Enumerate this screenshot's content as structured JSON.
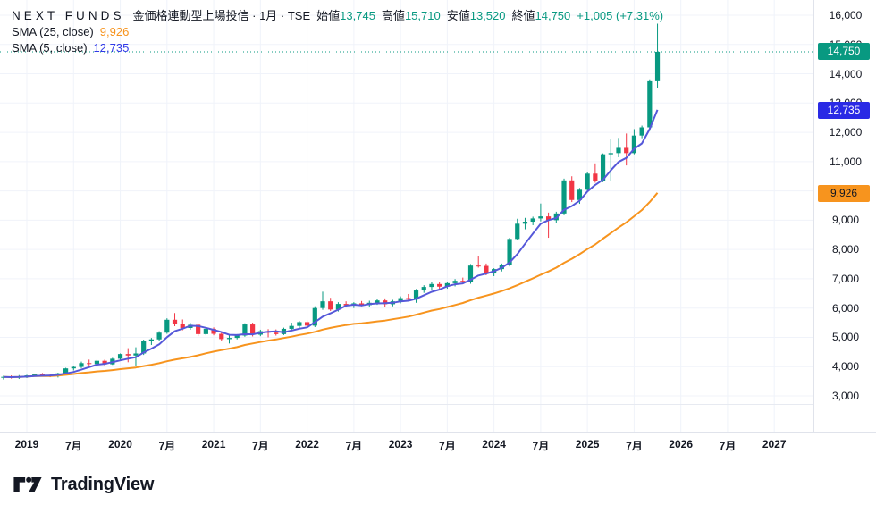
{
  "header": {
    "symbol": "NEXT FUNDS",
    "description": "金価格連動型上場投信 · 1月 · TSE",
    "ohlc": {
      "open": {
        "label": "始値",
        "value": "13,745"
      },
      "high": {
        "label": "高値",
        "value": "15,710"
      },
      "low": {
        "label": "安値",
        "value": "13,520"
      },
      "close": {
        "label": "終値",
        "value": "14,750"
      }
    },
    "change": "+1,005 (+7.31%)"
  },
  "indicators": [
    {
      "label": "SMA (25, close)",
      "value": "9,926",
      "color": "#f7941e"
    },
    {
      "label": "SMA (5, close)",
      "value": "12,735",
      "color": "#3039e8"
    }
  ],
  "price_axis": {
    "badges": [
      {
        "name": "last-price-badge",
        "label": "14,750",
        "price": 14750,
        "bg": "#089981",
        "fg": "#ffffff"
      },
      {
        "name": "sma5-badge",
        "label": "12,735",
        "price": 12735,
        "bg": "#2a2ae5",
        "fg": "#ffffff"
      },
      {
        "name": "sma25-badge",
        "label": "9,926",
        "price": 9926,
        "bg": "#f7941e",
        "fg": "#131722"
      }
    ]
  },
  "footer": {
    "brand": "TradingView"
  },
  "chart_data": {
    "type": "candlestick",
    "title": "NEXT FUNDS 金価格連動型上場投信",
    "exchange": "TSE",
    "interval": "1月",
    "colors": {
      "up": "#089981",
      "down": "#f23645",
      "grid": "#f0f3fa",
      "last_price_line": "#089981"
    },
    "last_price": 14750,
    "y_scale": {
      "v0": 16000,
      "y0": 17,
      "v1": 3000,
      "y1": 443
    },
    "x_scale": {
      "x0": 3.9,
      "step": 8.71
    },
    "y_ticks": [
      {
        "v": 16000,
        "label": "16,000"
      },
      {
        "v": 15000,
        "label": "15,000"
      },
      {
        "v": 14000,
        "label": "14,000"
      },
      {
        "v": 13000,
        "label": "13,000"
      },
      {
        "v": 12000,
        "label": "12,000"
      },
      {
        "v": 11000,
        "label": "11,000"
      },
      {
        "v": 10000,
        "label": "10,000"
      },
      {
        "v": 9000,
        "label": "9,000"
      },
      {
        "v": 8000,
        "label": "8,000"
      },
      {
        "v": 7000,
        "label": "7,000"
      },
      {
        "v": 6000,
        "label": "6,000"
      },
      {
        "v": 5000,
        "label": "5,000"
      },
      {
        "v": 4000,
        "label": "4,000"
      },
      {
        "v": 3000,
        "label": "3,000"
      }
    ],
    "x_ticks": [
      {
        "i": 3,
        "label": "2019"
      },
      {
        "i": 9,
        "label": "7月"
      },
      {
        "i": 15,
        "label": "2020"
      },
      {
        "i": 21,
        "label": "7月"
      },
      {
        "i": 27,
        "label": "2021"
      },
      {
        "i": 33,
        "label": "7月"
      },
      {
        "i": 39,
        "label": "2022"
      },
      {
        "i": 45,
        "label": "7月"
      },
      {
        "i": 51,
        "label": "2023"
      },
      {
        "i": 57,
        "label": "7月"
      },
      {
        "i": 63,
        "label": "2024"
      },
      {
        "i": 69,
        "label": "7月"
      },
      {
        "i": 75,
        "label": "2025"
      },
      {
        "i": 81,
        "label": "7月"
      },
      {
        "i": 87,
        "label": "2026"
      },
      {
        "i": 93,
        "label": "7月"
      },
      {
        "i": 99,
        "label": "2027"
      }
    ],
    "overlays": [
      {
        "name": "SMA25",
        "period": 25,
        "color": "#f7941e",
        "last": 9926
      },
      {
        "name": "SMA5",
        "period": 5,
        "color": "#5558d9",
        "last": 12735
      }
    ],
    "candles": [
      [
        "2018-10",
        3620,
        3690,
        3560,
        3650
      ],
      [
        "2018-11",
        3650,
        3700,
        3590,
        3630
      ],
      [
        "2018-12",
        3630,
        3710,
        3580,
        3660
      ],
      [
        "2019-01",
        3660,
        3720,
        3610,
        3700
      ],
      [
        "2019-02",
        3700,
        3760,
        3660,
        3740
      ],
      [
        "2019-03",
        3740,
        3780,
        3680,
        3720
      ],
      [
        "2019-04",
        3720,
        3750,
        3640,
        3670
      ],
      [
        "2019-05",
        3670,
        3790,
        3630,
        3770
      ],
      [
        "2019-06",
        3770,
        3960,
        3740,
        3940
      ],
      [
        "2019-07",
        3940,
        4030,
        3870,
        3990
      ],
      [
        "2019-08",
        3990,
        4170,
        3950,
        4120
      ],
      [
        "2019-09",
        4120,
        4240,
        4040,
        4090
      ],
      [
        "2019-10",
        4090,
        4230,
        4050,
        4200
      ],
      [
        "2019-11",
        4200,
        4240,
        4040,
        4080
      ],
      [
        "2019-12",
        4080,
        4300,
        4060,
        4270
      ],
      [
        "2020-01",
        4270,
        4450,
        4210,
        4430
      ],
      [
        "2020-02",
        4430,
        4630,
        4150,
        4380
      ],
      [
        "2020-03",
        4380,
        4660,
        4030,
        4450
      ],
      [
        "2020-04",
        4450,
        4920,
        4400,
        4880
      ],
      [
        "2020-05",
        4880,
        4980,
        4740,
        4930
      ],
      [
        "2020-06",
        4930,
        5210,
        4870,
        5160
      ],
      [
        "2020-07",
        5160,
        5650,
        5120,
        5600
      ],
      [
        "2020-08",
        5600,
        5830,
        5380,
        5470
      ],
      [
        "2020-09",
        5470,
        5610,
        5240,
        5320
      ],
      [
        "2020-10",
        5320,
        5490,
        5260,
        5430
      ],
      [
        "2020-11",
        5430,
        5460,
        5040,
        5110
      ],
      [
        "2020-12",
        5110,
        5340,
        5070,
        5290
      ],
      [
        "2021-01",
        5290,
        5340,
        5070,
        5120
      ],
      [
        "2021-02",
        5120,
        5190,
        4870,
        4940
      ],
      [
        "2021-03",
        4940,
        5070,
        4790,
        4980
      ],
      [
        "2021-04",
        4980,
        5110,
        4930,
        5060
      ],
      [
        "2021-05",
        5060,
        5480,
        5020,
        5440
      ],
      [
        "2021-06",
        5440,
        5500,
        5030,
        5090
      ],
      [
        "2021-07",
        5090,
        5260,
        5040,
        5210
      ],
      [
        "2021-08",
        5210,
        5280,
        5000,
        5160
      ],
      [
        "2021-09",
        5160,
        5270,
        5060,
        5110
      ],
      [
        "2021-10",
        5110,
        5330,
        5080,
        5290
      ],
      [
        "2021-11",
        5290,
        5500,
        5210,
        5390
      ],
      [
        "2021-12",
        5390,
        5560,
        5300,
        5520
      ],
      [
        "2022-01",
        5520,
        5580,
        5350,
        5400
      ],
      [
        "2022-02",
        5400,
        6060,
        5350,
        6000
      ],
      [
        "2022-03",
        6000,
        6560,
        5940,
        6230
      ],
      [
        "2022-04",
        6230,
        6350,
        5900,
        5950
      ],
      [
        "2022-05",
        5950,
        6200,
        5880,
        6140
      ],
      [
        "2022-06",
        6140,
        6230,
        6020,
        6090
      ],
      [
        "2022-07",
        6090,
        6200,
        6000,
        6160
      ],
      [
        "2022-08",
        6160,
        6240,
        6060,
        6100
      ],
      [
        "2022-09",
        6100,
        6250,
        6040,
        6180
      ],
      [
        "2022-10",
        6180,
        6320,
        6110,
        6260
      ],
      [
        "2022-11",
        6260,
        6330,
        6040,
        6130
      ],
      [
        "2022-12",
        6130,
        6280,
        6060,
        6230
      ],
      [
        "2023-01",
        6230,
        6400,
        6160,
        6340
      ],
      [
        "2023-02",
        6340,
        6480,
        6230,
        6290
      ],
      [
        "2023-03",
        6290,
        6650,
        6180,
        6600
      ],
      [
        "2023-04",
        6600,
        6780,
        6520,
        6720
      ],
      [
        "2023-05",
        6720,
        6900,
        6620,
        6820
      ],
      [
        "2023-06",
        6820,
        6890,
        6640,
        6730
      ],
      [
        "2023-07",
        6730,
        6890,
        6660,
        6850
      ],
      [
        "2023-08",
        6850,
        6990,
        6740,
        6930
      ],
      [
        "2023-09",
        6930,
        7040,
        6820,
        6880
      ],
      [
        "2023-10",
        6880,
        7500,
        6830,
        7450
      ],
      [
        "2023-11",
        7450,
        7760,
        7380,
        7440
      ],
      [
        "2023-12",
        7440,
        7520,
        7120,
        7180
      ],
      [
        "2024-01",
        7180,
        7360,
        7090,
        7330
      ],
      [
        "2024-02",
        7330,
        7520,
        7250,
        7470
      ],
      [
        "2024-03",
        7470,
        8400,
        7420,
        8360
      ],
      [
        "2024-04",
        8360,
        9050,
        8310,
        8880
      ],
      [
        "2024-05",
        8880,
        9080,
        8690,
        8950
      ],
      [
        "2024-06",
        8950,
        9120,
        8830,
        9060
      ],
      [
        "2024-07",
        9060,
        9570,
        8960,
        9130
      ],
      [
        "2024-08",
        9130,
        9260,
        8400,
        9000
      ],
      [
        "2024-09",
        9000,
        9290,
        8920,
        9230
      ],
      [
        "2024-10",
        9230,
        10420,
        9170,
        10360
      ],
      [
        "2024-11",
        10360,
        10500,
        9620,
        9690
      ],
      [
        "2024-12",
        9690,
        10100,
        9560,
        10040
      ],
      [
        "2025-01",
        10040,
        10650,
        9980,
        10590
      ],
      [
        "2025-02",
        10590,
        10940,
        10280,
        10340
      ],
      [
        "2025-03",
        10340,
        11280,
        10300,
        11250
      ],
      [
        "2025-04",
        11250,
        11760,
        10350,
        11290
      ],
      [
        "2025-05",
        11290,
        11810,
        11150,
        11470
      ],
      [
        "2025-06",
        11470,
        11960,
        10870,
        11290
      ],
      [
        "2025-07",
        11290,
        12110,
        11250,
        11890
      ],
      [
        "2025-08",
        11890,
        12230,
        11800,
        12170
      ],
      [
        "2025-09",
        12170,
        13810,
        12050,
        13745
      ],
      [
        "2025-10",
        13745,
        15710,
        13520,
        14750
      ]
    ]
  }
}
